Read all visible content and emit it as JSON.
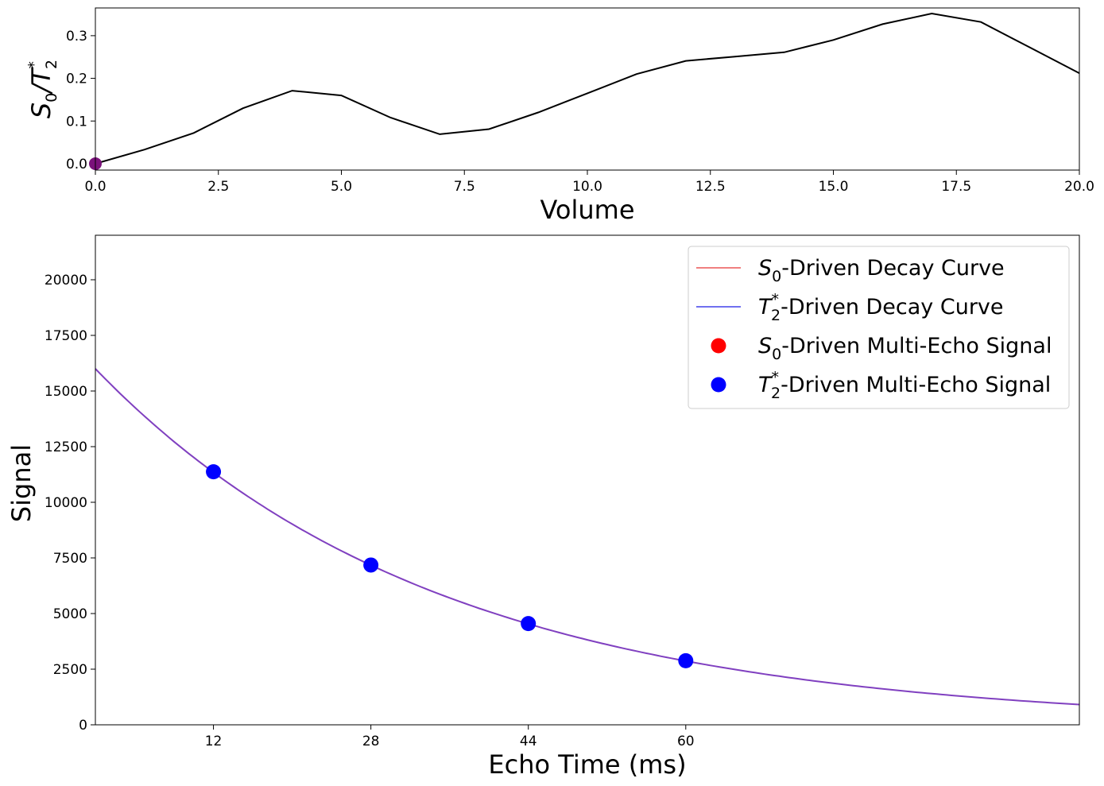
{
  "chart_data": [
    {
      "type": "line",
      "xlabel": "Volume",
      "ylabel_base": "S",
      "ylabel_sub0": "0",
      "ylabel_mid": "/T",
      "ylabel_sup": "*",
      "ylabel_sub2": "2",
      "xlim": [
        0,
        20
      ],
      "ylim": [
        -0.015,
        0.365
      ],
      "xticks": [
        0,
        2.5,
        5,
        7.5,
        10,
        12.5,
        15,
        17.5,
        20
      ],
      "xtick_labels": [
        "0.0",
        "2.5",
        "5.0",
        "7.5",
        "10.0",
        "12.5",
        "15.0",
        "17.5",
        "20.0"
      ],
      "yticks": [
        0,
        0.1,
        0.2,
        0.3
      ],
      "ytick_labels": [
        "0.0",
        "0.1",
        "0.2",
        "0.3"
      ],
      "series": [
        {
          "color": "#000000",
          "x": [
            0,
            1,
            2,
            3,
            4,
            5,
            6,
            7,
            8,
            9,
            10,
            11,
            12,
            13,
            14,
            15,
            16,
            17,
            18,
            19,
            20
          ],
          "y": [
            0,
            0.033,
            0.072,
            0.13,
            0.171,
            0.16,
            0.108,
            0.069,
            0.081,
            0.12,
            0.165,
            0.21,
            0.241,
            0.251,
            0.261,
            0.29,
            0.327,
            0.352,
            0.332,
            0.272,
            0.212
          ]
        }
      ],
      "marker": {
        "x": 0,
        "y": 0,
        "color": "#7b127b"
      },
      "grid": false
    },
    {
      "type": "line",
      "xlabel": "Echo Time (ms)",
      "ylabel": "Signal",
      "xlim": [
        0,
        100
      ],
      "ylim": [
        0,
        22000
      ],
      "xticks": [
        12,
        28,
        44,
        60
      ],
      "xtick_labels": [
        "12",
        "28",
        "44",
        "60"
      ],
      "yticks": [
        0,
        2500,
        5000,
        7500,
        10000,
        12500,
        15000,
        17500,
        20000
      ],
      "ytick_labels": [
        "0",
        "2500",
        "5000",
        "7500",
        "10000",
        "12500",
        "15000",
        "17500",
        "20000"
      ],
      "curve": {
        "S0": 16000,
        "T2star": 34.9,
        "color": "#8040c0"
      },
      "series": [
        {
          "name_a": "S",
          "name_sub": "0",
          "name_rest": "-Driven Decay Curve",
          "kind": "line",
          "color": "#f08080"
        },
        {
          "name_a": "T",
          "name_sup": "*",
          "name_sub": "2",
          "name_rest": "-Driven Decay Curve",
          "kind": "line",
          "color": "#7070f0"
        },
        {
          "name_a": "S",
          "name_sub": "0",
          "name_rest": "-Driven Multi-Echo Signal",
          "kind": "scatter",
          "color": "#ff0000"
        },
        {
          "name_a": "T",
          "name_sup": "*",
          "name_sub": "2",
          "name_rest": "-Driven Multi-Echo Signal",
          "kind": "scatter",
          "color": "#0000ff"
        }
      ],
      "points": {
        "x": [
          12,
          28,
          44,
          60
        ],
        "y": [
          11370,
          7180,
          4550,
          2880
        ],
        "color": "#0000ff"
      },
      "legend": "upper right",
      "grid": false
    }
  ]
}
